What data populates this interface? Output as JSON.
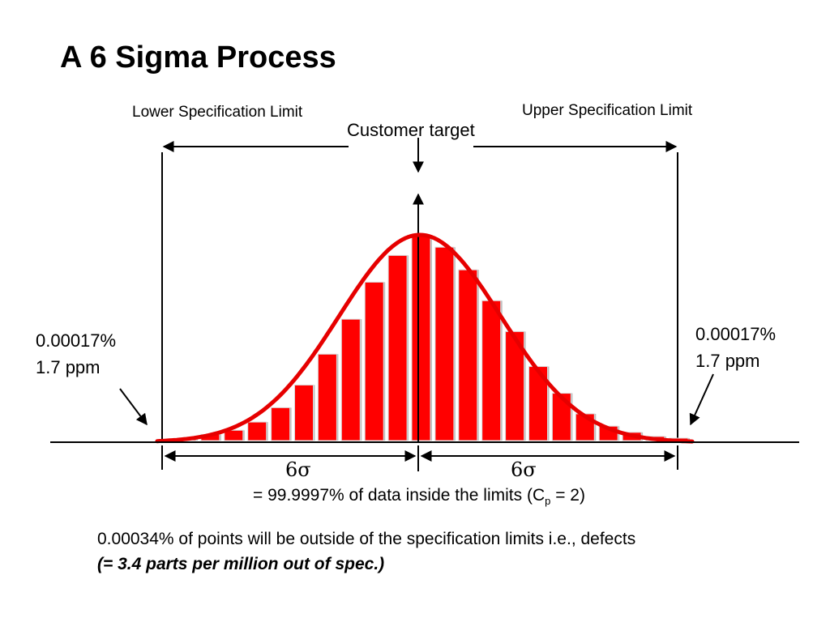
{
  "title": "A 6 Sigma Process",
  "labels": {
    "lower_spec_limit": "Lower Specification Limit",
    "upper_spec_limit": "Upper Specification Limit",
    "customer_target": "Customer target"
  },
  "tails": {
    "left": {
      "percent": "0.00017%",
      "ppm": "1.7 ppm"
    },
    "right": {
      "percent": "0.00017%",
      "ppm": "1.7 ppm"
    }
  },
  "sigma": {
    "left": "6σ",
    "right": "6σ"
  },
  "capability": {
    "prefix": "= 99.9997% of data inside the limits (C",
    "subscript": "p",
    "suffix": " = 2)"
  },
  "footnote": {
    "line1": "0.00034% of points will be outside of the specification limits i.e., defects",
    "line2": "(= 3.4 parts per million out of spec.)"
  },
  "histogram": {
    "bar_heights_relative": [
      0.01,
      0.03,
      0.05,
      0.09,
      0.16,
      0.27,
      0.42,
      0.59,
      0.77,
      0.9,
      1.0,
      0.94,
      0.83,
      0.68,
      0.53,
      0.36,
      0.23,
      0.13,
      0.07,
      0.04,
      0.02,
      0.01
    ],
    "bar_color": "#ff0000",
    "curve_color": "#e60000"
  }
}
